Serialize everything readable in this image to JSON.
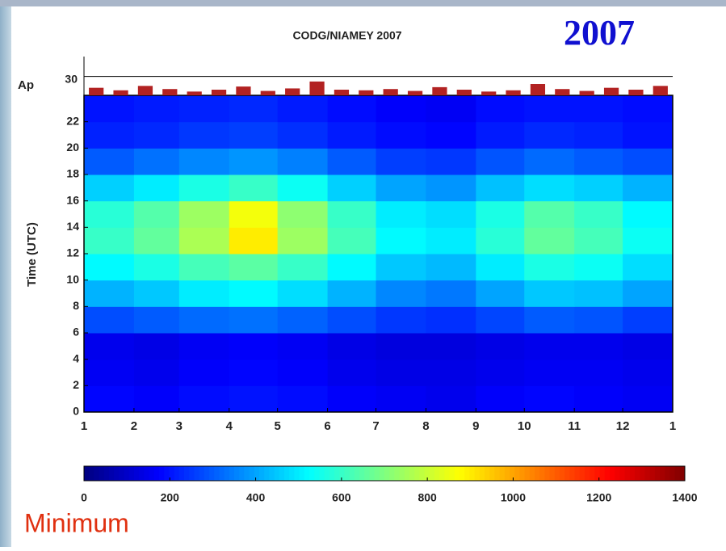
{
  "chart_data": {
    "type": "contour",
    "title": "CODG/NIAMEY 2007",
    "badge": "2007",
    "caption": "Minimum",
    "ylabel": "Time (UTC)",
    "colormap": "jet",
    "xlim": [
      1,
      366
    ],
    "xticks": [
      1,
      {
        "value": 32,
        "label": "2"
      },
      {
        "value": 60,
        "label": "3"
      },
      {
        "value": 91,
        "label": "4"
      },
      {
        "value": 121,
        "label": "5"
      },
      {
        "value": 152,
        "label": "6"
      },
      {
        "value": 182,
        "label": "7"
      },
      {
        "value": 213,
        "label": "8"
      },
      {
        "value": 244,
        "label": "9"
      },
      {
        "value": 274,
        "label": "10"
      },
      {
        "value": 305,
        "label": "11"
      },
      {
        "value": 335,
        "label": "12"
      },
      {
        "value": 366,
        "label": "1"
      }
    ],
    "ylim": [
      0,
      24
    ],
    "yticks": [
      0,
      2,
      4,
      6,
      8,
      10,
      12,
      14,
      16,
      18,
      20,
      22
    ],
    "x_bins": [
      1,
      32,
      60,
      91,
      121,
      152,
      182,
      213,
      244,
      274,
      305,
      335,
      366
    ],
    "y_bins": [
      0,
      2,
      4,
      6,
      8,
      10,
      12,
      14,
      16,
      18,
      20,
      22,
      24
    ],
    "z": [
      [
        180,
        170,
        190,
        200,
        190,
        170,
        160,
        150,
        170,
        180,
        170,
        160
      ],
      [
        160,
        150,
        170,
        180,
        170,
        150,
        140,
        140,
        150,
        160,
        160,
        150
      ],
      [
        150,
        140,
        160,
        170,
        160,
        140,
        130,
        130,
        140,
        150,
        150,
        140
      ],
      [
        280,
        300,
        320,
        330,
        310,
        280,
        250,
        240,
        270,
        300,
        290,
        260
      ],
      [
        420,
        450,
        500,
        520,
        480,
        420,
        360,
        340,
        400,
        450,
        440,
        400
      ],
      [
        520,
        560,
        620,
        650,
        600,
        520,
        450,
        430,
        500,
        560,
        540,
        480
      ],
      [
        600,
        660,
        760,
        900,
        740,
        620,
        520,
        500,
        580,
        660,
        620,
        540
      ],
      [
        580,
        640,
        740,
        860,
        720,
        600,
        500,
        480,
        560,
        640,
        600,
        520
      ],
      [
        460,
        500,
        560,
        600,
        540,
        460,
        400,
        380,
        440,
        480,
        460,
        420
      ],
      [
        300,
        330,
        360,
        380,
        350,
        300,
        260,
        250,
        290,
        320,
        300,
        280
      ],
      [
        220,
        230,
        250,
        260,
        240,
        210,
        190,
        180,
        210,
        230,
        220,
        200
      ],
      [
        200,
        210,
        220,
        230,
        210,
        190,
        170,
        160,
        190,
        200,
        200,
        190
      ]
    ],
    "zlim": [
      0,
      1400
    ],
    "zticks": [
      0,
      200,
      400,
      600,
      800,
      1000,
      1200,
      1400
    ],
    "ap": {
      "label": "Ap",
      "ylim": [
        0,
        36
      ],
      "yticks": [
        30
      ],
      "color": "#b22222",
      "values": [
        12,
        8,
        15,
        10,
        6,
        9,
        14,
        7,
        11,
        22,
        9,
        8,
        10,
        7,
        13,
        9,
        6,
        8,
        18,
        10,
        7,
        12,
        9,
        15
      ]
    }
  }
}
